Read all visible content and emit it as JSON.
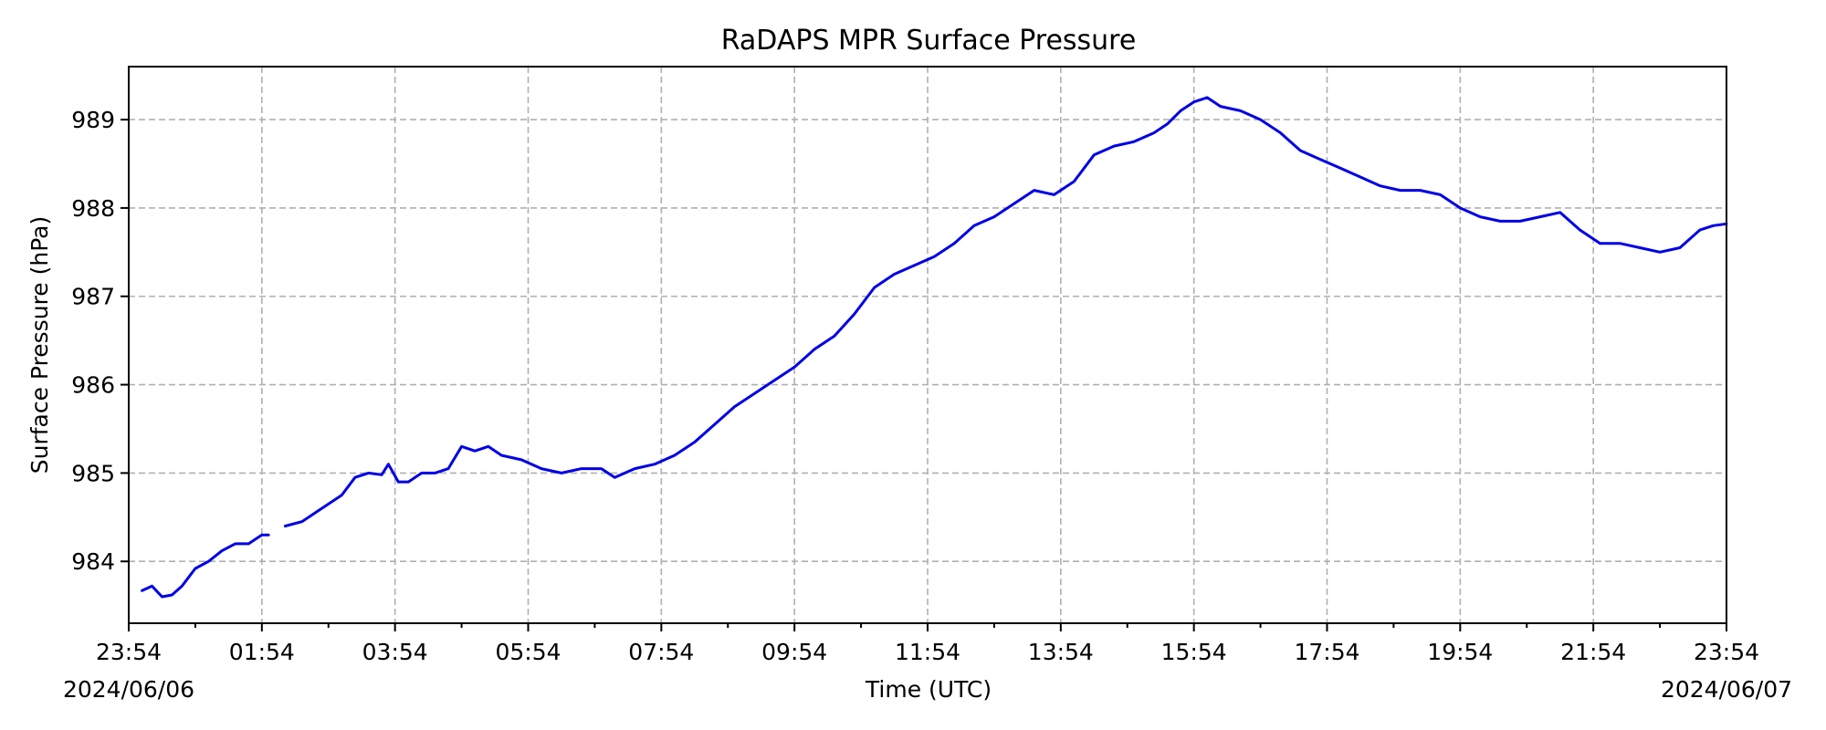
{
  "chart_data": {
    "type": "line",
    "title": "RaDAPS MPR Surface Pressure",
    "xlabel": "Time (UTC)",
    "ylabel": "Surface Pressure (hPa)",
    "x_tick_labels": [
      "23:54",
      "01:54",
      "03:54",
      "05:54",
      "07:54",
      "09:54",
      "11:54",
      "13:54",
      "15:54",
      "17:54",
      "19:54",
      "21:54",
      "23:54"
    ],
    "x_ticks_hours": [
      0,
      2,
      4,
      6,
      8,
      10,
      12,
      14,
      16,
      18,
      20,
      22,
      24
    ],
    "x_date_labels": {
      "start": "2024/06/06",
      "end": "2024/06/07"
    },
    "xlim_hours": [
      0,
      24
    ],
    "y_ticks": [
      984,
      985,
      986,
      987,
      988,
      989
    ],
    "ylim": [
      983.3,
      989.6
    ],
    "grid": true,
    "series": [
      {
        "color": "#0000e6",
        "segments": [
          [
            [
              0.2,
              983.67
            ],
            [
              0.35,
              983.72
            ],
            [
              0.5,
              983.6
            ],
            [
              0.65,
              983.62
            ],
            [
              0.8,
              983.72
            ],
            [
              1.0,
              983.92
            ],
            [
              1.2,
              984.0
            ],
            [
              1.4,
              984.12
            ],
            [
              1.6,
              984.2
            ],
            [
              1.8,
              984.2
            ],
            [
              2.0,
              984.3
            ],
            [
              2.1,
              984.3
            ]
          ],
          [
            [
              2.35,
              984.4
            ],
            [
              2.6,
              984.45
            ],
            [
              2.9,
              984.6
            ],
            [
              3.2,
              984.75
            ],
            [
              3.4,
              984.95
            ],
            [
              3.6,
              985.0
            ],
            [
              3.8,
              984.98
            ],
            [
              3.9,
              985.1
            ],
            [
              4.05,
              984.9
            ],
            [
              4.2,
              984.9
            ],
            [
              4.4,
              985.0
            ],
            [
              4.6,
              985.0
            ],
            [
              4.8,
              985.05
            ],
            [
              5.0,
              985.3
            ],
            [
              5.2,
              985.25
            ],
            [
              5.4,
              985.3
            ],
            [
              5.6,
              985.2
            ],
            [
              5.9,
              985.15
            ],
            [
              6.2,
              985.05
            ],
            [
              6.5,
              985.0
            ],
            [
              6.8,
              985.05
            ],
            [
              7.1,
              985.05
            ],
            [
              7.3,
              984.95
            ],
            [
              7.6,
              985.05
            ],
            [
              7.9,
              985.1
            ],
            [
              8.2,
              985.2
            ],
            [
              8.5,
              985.35
            ],
            [
              8.8,
              985.55
            ],
            [
              9.1,
              985.75
            ],
            [
              9.4,
              985.9
            ],
            [
              9.7,
              986.05
            ],
            [
              10.0,
              986.2
            ],
            [
              10.3,
              986.4
            ],
            [
              10.6,
              986.55
            ],
            [
              10.9,
              986.8
            ],
            [
              11.2,
              987.1
            ],
            [
              11.5,
              987.25
            ],
            [
              11.8,
              987.35
            ],
            [
              12.1,
              987.45
            ],
            [
              12.4,
              987.6
            ],
            [
              12.7,
              987.8
            ],
            [
              13.0,
              987.9
            ],
            [
              13.3,
              988.05
            ],
            [
              13.6,
              988.2
            ],
            [
              13.9,
              988.15
            ],
            [
              14.2,
              988.3
            ],
            [
              14.5,
              988.6
            ],
            [
              14.8,
              988.7
            ],
            [
              15.1,
              988.75
            ],
            [
              15.4,
              988.85
            ],
            [
              15.6,
              988.95
            ],
            [
              15.8,
              989.1
            ],
            [
              16.0,
              989.2
            ],
            [
              16.2,
              989.25
            ],
            [
              16.4,
              989.15
            ],
            [
              16.7,
              989.1
            ],
            [
              17.0,
              989.0
            ],
            [
              17.3,
              988.85
            ],
            [
              17.6,
              988.65
            ],
            [
              17.9,
              988.55
            ],
            [
              18.2,
              988.45
            ],
            [
              18.5,
              988.35
            ],
            [
              18.8,
              988.25
            ],
            [
              19.1,
              988.2
            ],
            [
              19.4,
              988.2
            ],
            [
              19.7,
              988.15
            ],
            [
              20.0,
              988.0
            ],
            [
              20.3,
              987.9
            ],
            [
              20.6,
              987.85
            ],
            [
              20.9,
              987.85
            ],
            [
              21.2,
              987.9
            ],
            [
              21.5,
              987.95
            ],
            [
              21.8,
              987.75
            ],
            [
              22.1,
              987.6
            ],
            [
              22.4,
              987.6
            ],
            [
              22.7,
              987.55
            ],
            [
              23.0,
              987.5
            ],
            [
              23.3,
              987.55
            ],
            [
              23.6,
              987.75
            ],
            [
              23.8,
              987.8
            ],
            [
              24.0,
              987.82
            ]
          ]
        ]
      }
    ]
  }
}
